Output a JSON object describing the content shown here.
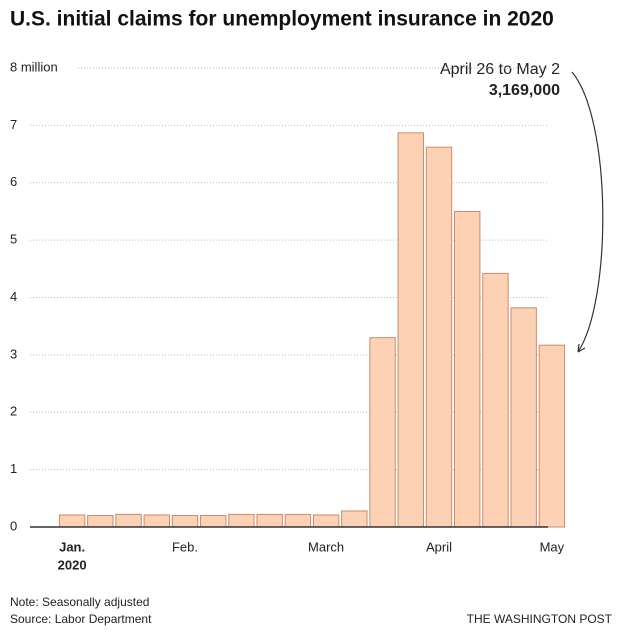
{
  "chart_data": {
    "type": "bar",
    "title": "U.S. initial claims for unemployment insurance in 2020",
    "categories": [
      "Jan.",
      null,
      null,
      null,
      "Feb.",
      null,
      null,
      null,
      null,
      "March",
      null,
      null,
      null,
      "April",
      null,
      null,
      null,
      "May"
    ],
    "year_label": "2020",
    "values": [
      0.21,
      0.2,
      0.22,
      0.21,
      0.2,
      0.2,
      0.22,
      0.22,
      0.22,
      0.21,
      0.28,
      3.3,
      6.87,
      6.62,
      5.5,
      4.42,
      3.82,
      3.169
    ],
    "color": "#fdd1b3",
    "ylim": [
      0,
      8
    ],
    "yticks": [
      0,
      1,
      2,
      3,
      4,
      5,
      6,
      7,
      {
        "value": 8,
        "label": "8 million"
      }
    ],
    "grid": true,
    "annotation": {
      "label": "April 26 to May 2",
      "value_label": "3,169,000"
    },
    "note": "Note: Seasonally adjusted",
    "source": "Source: Labor Department",
    "credit": "THE WASHINGTON POST"
  }
}
